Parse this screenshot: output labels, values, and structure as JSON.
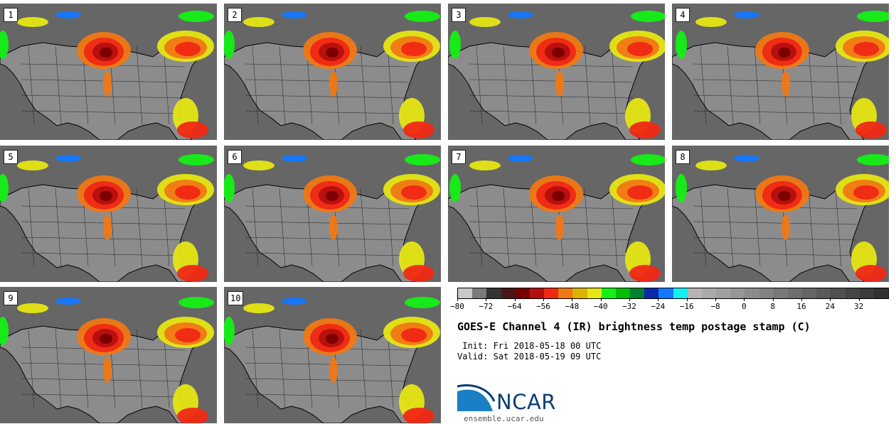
{
  "panels": [
    "1",
    "2",
    "3",
    "4",
    "5",
    "6",
    "7",
    "8",
    "9",
    "10"
  ],
  "colorbar": {
    "colors": [
      "#c8c8c8",
      "#7a7a7a",
      "#333333",
      "#4a1414",
      "#780000",
      "#b40f0f",
      "#f02814",
      "#f07814",
      "#dcb400",
      "#e6e614",
      "#14f014",
      "#00be00",
      "#00822d",
      "#0a28aa",
      "#1478ff",
      "#14f0f0",
      "#b4b4b4",
      "#aaaaaa",
      "#a0a0a0",
      "#969696",
      "#8c8c8c",
      "#828282",
      "#787878",
      "#6e6e6e",
      "#646464",
      "#5a5a5a",
      "#505050",
      "#464646",
      "#3c3c3c",
      "#323232"
    ],
    "tick_values": [
      -80,
      -72,
      -64,
      -56,
      -48,
      -40,
      -32,
      -24,
      -16,
      -8,
      0,
      8,
      16,
      24,
      32
    ],
    "min": -80,
    "max": 40,
    "tick_labels": [
      "−80",
      "−72",
      "−64",
      "−56",
      "−48",
      "−40",
      "−32",
      "−24",
      "−16",
      "−8",
      "0",
      "8",
      "16",
      "24",
      "32"
    ]
  },
  "title": "GOES-E Channel 4 (IR) brightness temp postage stamp (C)",
  "init_text": " Init: Fri 2018-05-18 00 UTC",
  "valid_text": "Valid: Sat 2018-05-19 09 UTC",
  "logo": {
    "name": "NCAR",
    "url": "ensemble.ucar.edu"
  }
}
